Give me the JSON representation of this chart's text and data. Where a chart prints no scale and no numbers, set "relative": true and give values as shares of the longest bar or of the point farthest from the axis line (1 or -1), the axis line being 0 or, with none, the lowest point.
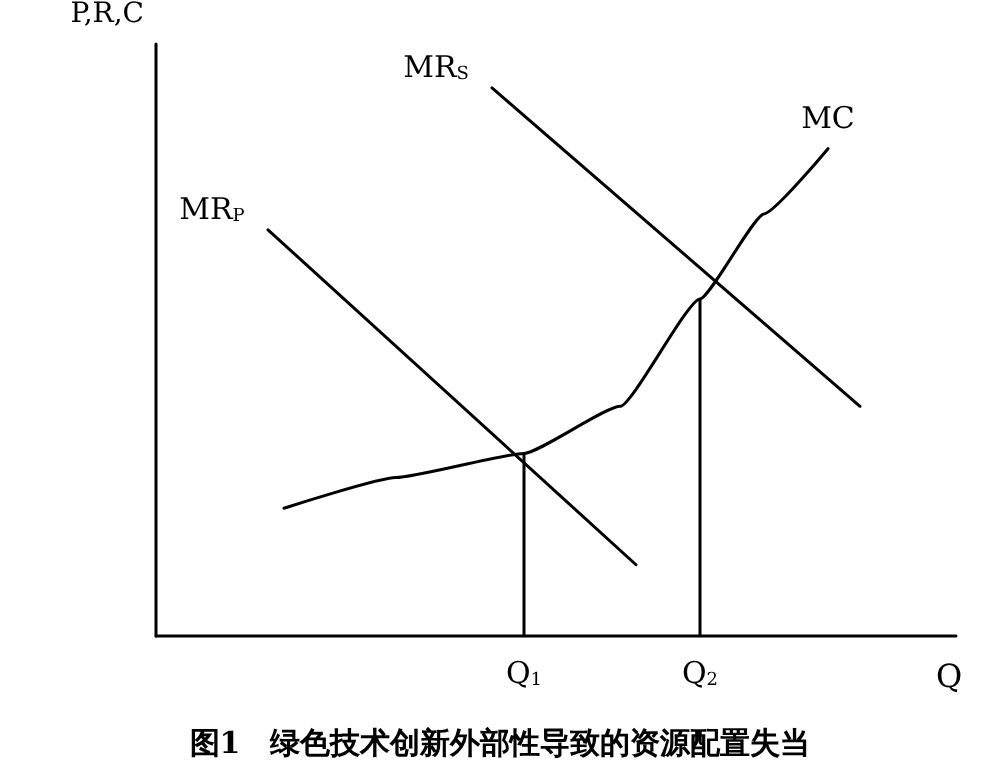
{
  "chart_data": {
    "type": "line",
    "title": "图1　绿色技术创新外部性导致的资源配置失当",
    "xlabel": "Q",
    "ylabel": "P,R,C",
    "relative": true,
    "grid": false,
    "legend": false,
    "marker": "none",
    "line_style": "solid",
    "categories": [
      null,
      null,
      null,
      null,
      null,
      null,
      null,
      null,
      null,
      null,
      null,
      null,
      null,
      null,
      null,
      null,
      null,
      null,
      null,
      null,
      null,
      null,
      null,
      "Q$_{1}$",
      null,
      null,
      null,
      null,
      null,
      null,
      null,
      null,
      null,
      null,
      "Q$_{2}$",
      null,
      null,
      null,
      null,
      null,
      null,
      null,
      null,
      null,
      null,
      null,
      null,
      null,
      null,
      null,
      null
    ],
    "ref_lines": [
      {
        "axis": "x",
        "value": "Q$_{1}$",
        "color": "#000000"
      },
      {
        "axis": "x",
        "value": "Q$_{2}$",
        "color": "#000000"
      }
    ],
    "series": [
      {
        "name": "MR$_{P}$",
        "color": "#000000",
        "values": [
          null,
          null,
          null,
          null,
          null,
          null,
          null,
          0.741,
          null,
          null,
          null,
          null,
          null,
          null,
          null,
          null,
          null,
          null,
          null,
          null,
          null,
          null,
          null,
          null,
          null,
          null,
          null,
          null,
          null,
          null,
          0.13,
          null,
          null,
          null,
          null,
          null,
          null,
          null,
          null,
          null,
          null,
          null,
          null,
          null,
          null,
          null,
          null,
          null,
          null,
          null,
          null
        ]
      },
      {
        "name": "MR$_{S}$",
        "color": "#000000",
        "values": [
          null,
          null,
          null,
          null,
          null,
          null,
          null,
          null,
          null,
          null,
          null,
          null,
          null,
          null,
          null,
          null,
          null,
          null,
          null,
          null,
          null,
          1,
          null,
          null,
          null,
          null,
          null,
          null,
          null,
          null,
          null,
          null,
          null,
          null,
          null,
          null,
          null,
          null,
          null,
          null,
          null,
          null,
          null,
          null,
          0.419,
          null,
          null,
          null,
          null,
          null,
          null
        ]
      },
      {
        "name": "MC",
        "color": "#000000",
        "values": [
          null,
          null,
          null,
          null,
          null,
          null,
          null,
          null,
          0.233,
          null,
          null,
          null,
          null,
          null,
          null,
          0.289,
          null,
          null,
          null,
          null,
          null,
          null,
          null,
          0.333,
          null,
          null,
          null,
          null,
          null,
          0.419,
          null,
          null,
          null,
          null,
          0.615,
          null,
          null,
          null,
          0.77,
          null,
          null,
          null,
          0.889,
          null,
          null,
          null,
          null,
          null,
          null,
          null,
          null
        ]
      }
    ]
  }
}
